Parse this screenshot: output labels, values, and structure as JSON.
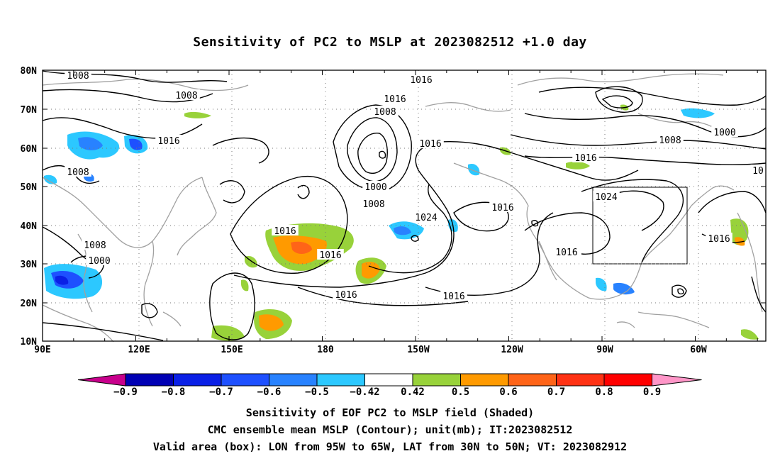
{
  "title": "Sensitivity of PC2 to MSLP at 2023082512 +1.0 day",
  "lat_labels": [
    "80N",
    "70N",
    "60N",
    "50N",
    "40N",
    "30N",
    "20N",
    "10N"
  ],
  "lon_labels": [
    "90E",
    "120E",
    "150E",
    "180",
    "150W",
    "120W",
    "90W",
    "60W"
  ],
  "contour_labels": [
    "1008",
    "1008",
    "1016",
    "1008",
    "1008",
    "1000",
    "1016",
    "1016",
    "1008",
    "1000",
    "1008",
    "1016",
    "1024",
    "1016",
    "1016",
    "1016",
    "1016",
    "1000",
    "1008",
    "1016",
    "10",
    "1024",
    "1016",
    "1016",
    "1016"
  ],
  "colorbar": {
    "labels": [
      "-0.9",
      "-0.8",
      "-0.7",
      "-0.6",
      "-0.5",
      "-0.42",
      "0.42",
      "0.5",
      "0.6",
      "0.7",
      "0.8",
      "0.9"
    ],
    "colors": [
      "#c8008c",
      "#0000b4",
      "#0a20e6",
      "#1e50ff",
      "#2882ff",
      "#2cc8ff",
      "#ffffff",
      "#98d23a",
      "#ff9a00",
      "#ff6418",
      "#ff3214",
      "#ff0000",
      "#ff96c8"
    ]
  },
  "valid_box": {
    "lon_range": [
      "95W",
      "65W"
    ],
    "lat_range": [
      "30N",
      "50N"
    ]
  },
  "captions": [
    "Sensitivity of EOF PC2 to MSLP field (Shaded)",
    "CMC ensemble mean MSLP (Contour); unit(mb); IT:2023082512",
    "Valid area (box): LON from 95W to 65W, LAT from 30N to 50N; VT: 2023082912"
  ]
}
